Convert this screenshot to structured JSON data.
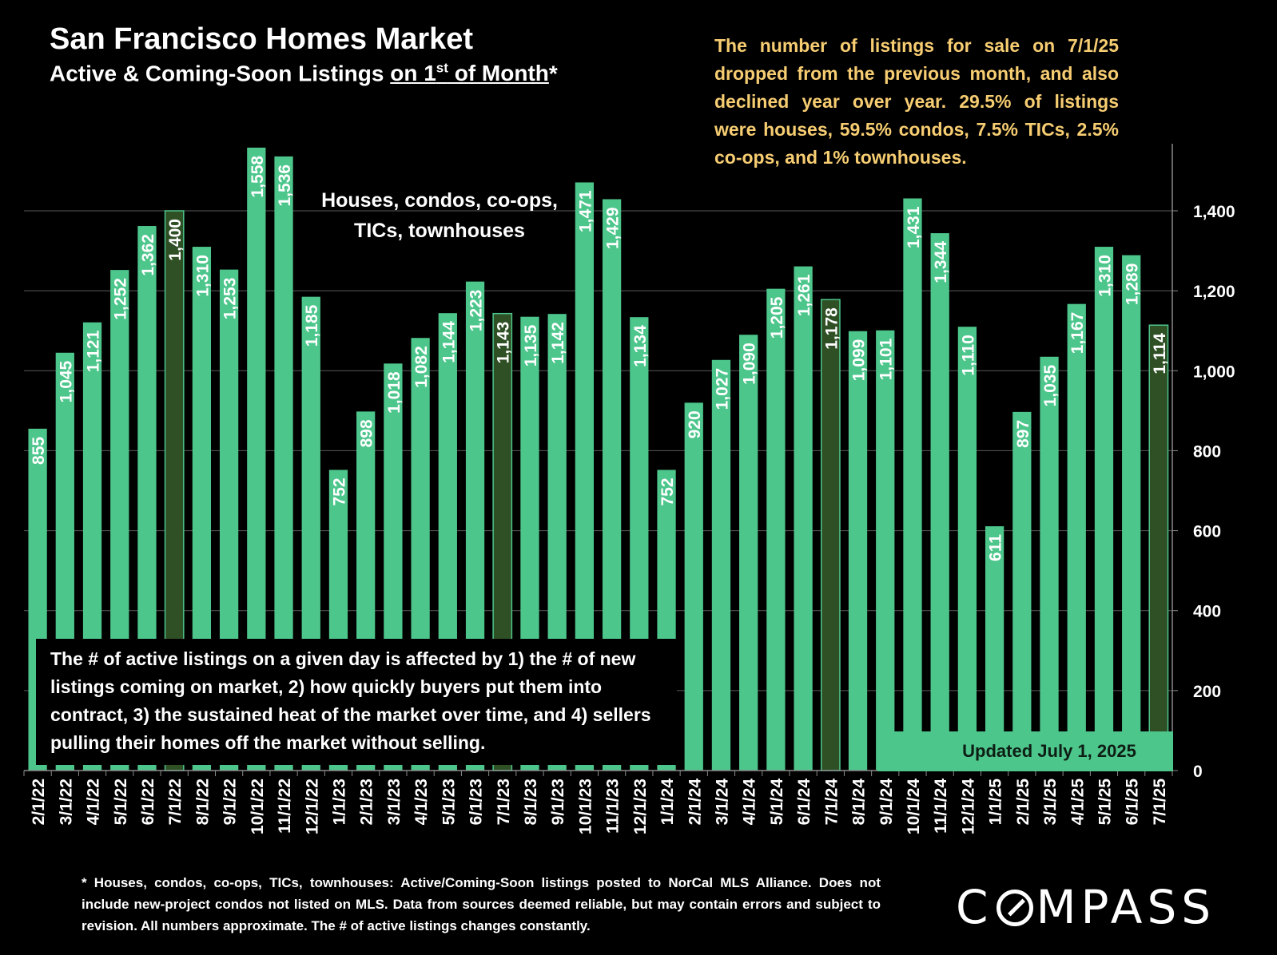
{
  "header": {
    "title": "San Francisco Homes Market",
    "subtitle_pre": "Active & Coming-Soon Listings ",
    "subtitle_underlined": "on 1",
    "subtitle_sup": "st",
    "subtitle_underlined_end": " of Month",
    "subtitle_post": "*"
  },
  "headline_note": "The number of listings for sale on 7/1/25 dropped from the previous month, and also declined year over year. 29.5% of listings were houses, 59.5% condos, 7.5% TICs, 2.5% co-ops, and 1% townhouses.",
  "series_label_lines": [
    "Houses, condos, co-ops,",
    "TICs, townhouses"
  ],
  "explain_box": "The # of active listings on a given day is affected by 1) the # of new listings coming on market, 2) how quickly buyers put them into contract, 3) the sustained heat of the market over time, and 4) sellers pulling their homes off the market without selling.",
  "updated_label": "Updated July 1, 2025",
  "footnote": "* Houses, condos, co-ops, TICs, townhouses: Active/Coming-Soon listings posted to NorCal MLS Alliance. Does not include new-project condos not listed on MLS. Data from sources deemed reliable, but may contain errors and subject to revision. All numbers approximate. The # of active listings changes constantly.",
  "logo": {
    "pre": "C",
    "post": "MPASS"
  },
  "colors": {
    "bar": "#4dc68c",
    "highlight_bar": "#2f4f25",
    "title": "#ffffff",
    "note": "#f7cd72",
    "background": "#000000"
  },
  "chart_data": {
    "type": "bar",
    "categories": [
      "2/1/22",
      "3/1/22",
      "4/1/22",
      "5/1/22",
      "6/1/22",
      "7/1/22",
      "8/1/22",
      "9/1/22",
      "10/1/22",
      "11/1/22",
      "12/1/22",
      "1/1/23",
      "2/1/23",
      "3/1/23",
      "4/1/23",
      "5/1/23",
      "6/1/23",
      "7/1/23",
      "8/1/23",
      "9/1/23",
      "10/1/23",
      "11/1/23",
      "12/1/23",
      "1/1/24",
      "2/1/24",
      "3/1/24",
      "4/1/24",
      "5/1/24",
      "6/1/24",
      "7/1/24",
      "8/1/24",
      "9/1/24",
      "10/1/24",
      "11/1/24",
      "12/1/24",
      "1/1/25",
      "2/1/25",
      "3/1/25",
      "4/1/25",
      "5/1/25",
      "6/1/25",
      "7/1/25"
    ],
    "values": [
      855,
      1045,
      1121,
      1252,
      1362,
      1400,
      1310,
      1253,
      1558,
      1536,
      1185,
      752,
      898,
      1018,
      1082,
      1144,
      1223,
      1143,
      1135,
      1142,
      1471,
      1429,
      1134,
      752,
      920,
      1027,
      1090,
      1205,
      1261,
      1178,
      1099,
      1101,
      1431,
      1344,
      1110,
      611,
      897,
      1035,
      1167,
      1310,
      1289,
      1114
    ],
    "value_labels": [
      "855",
      "1,045",
      "1,121",
      "1,252",
      "1,362",
      "1,400",
      "1,310",
      "1,253",
      "1,558",
      "1,536",
      "1,185",
      "752",
      "898",
      "1,018",
      "1,082",
      "1,144",
      "1,223",
      "1,143",
      "1,135",
      "1,142",
      "1,471",
      "1,429",
      "1,134",
      "752",
      "920",
      "1,027",
      "1,090",
      "1,205",
      "1,261",
      "1,178",
      "1,099",
      "1,101",
      "1,431",
      "1,344",
      "1,110",
      "611",
      "897",
      "1,035",
      "1,167",
      "1,310",
      "1,289",
      "1,114"
    ],
    "highlighted_categories": [
      "7/1/22",
      "7/1/23",
      "7/1/24",
      "7/1/25"
    ],
    "y_ticks": [
      0,
      200,
      400,
      600,
      800,
      1000,
      1200,
      1400
    ],
    "y_tick_labels": [
      "0",
      "200",
      "400",
      "600",
      "800",
      "1,000",
      "1,200",
      "1,400"
    ],
    "ylim": [
      0,
      1570
    ],
    "y_axis_side": "right",
    "grid": true,
    "title": "San Francisco Homes Market",
    "xlabel": "",
    "ylabel": ""
  }
}
